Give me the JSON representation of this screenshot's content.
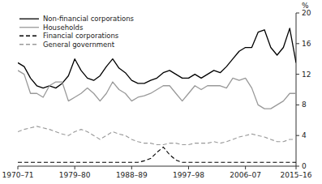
{
  "chart_data": {
    "type": "line",
    "y_label": "%",
    "categories": [
      "1970–71",
      null,
      null,
      null,
      null,
      null,
      null,
      null,
      null,
      "1979–80",
      null,
      null,
      null,
      null,
      null,
      null,
      null,
      null,
      "1988–89",
      null,
      null,
      null,
      null,
      null,
      null,
      null,
      null,
      "1997–98",
      null,
      null,
      null,
      null,
      null,
      null,
      null,
      null,
      "2006–07",
      null,
      null,
      null,
      null,
      null,
      null,
      null,
      "2015–16"
    ],
    "series": [
      {
        "name": "Non-financial corporations",
        "color": "#000000",
        "line_style": "solid",
        "values": [
          13.5,
          13.0,
          11.5,
          10.5,
          10.2,
          10.5,
          10.2,
          10.8,
          11.8,
          14.0,
          12.5,
          11.5,
          11.2,
          11.8,
          13.0,
          14.0,
          12.8,
          12.2,
          11.2,
          10.8,
          10.8,
          11.2,
          11.5,
          12.2,
          12.5,
          12.0,
          11.5,
          11.5,
          12.0,
          11.5,
          12.0,
          12.5,
          12.2,
          13.0,
          14.0,
          15.0,
          15.5,
          15.5,
          17.5,
          17.8,
          15.5,
          14.5,
          15.5,
          18.0,
          13.5
        ]
      },
      {
        "name": "Households",
        "color": "#999999",
        "line_style": "solid",
        "values": [
          12.5,
          12.0,
          9.5,
          9.5,
          9.0,
          10.5,
          11.0,
          11.0,
          8.5,
          9.0,
          9.5,
          10.2,
          9.5,
          8.5,
          9.5,
          11.0,
          10.0,
          9.5,
          8.5,
          9.0,
          9.2,
          9.5,
          10.0,
          10.5,
          10.5,
          9.5,
          8.5,
          9.5,
          10.5,
          10.0,
          10.5,
          10.5,
          10.5,
          10.2,
          11.5,
          11.2,
          11.5,
          10.2,
          8.0,
          7.5,
          7.5,
          8.0,
          8.5,
          9.5,
          9.5
        ]
      },
      {
        "name": "Financial corporations",
        "color": "#000000",
        "line_style": "dashed",
        "values": [
          0.5,
          0.5,
          0.5,
          0.5,
          0.5,
          0.5,
          0.5,
          0.5,
          0.5,
          0.5,
          0.5,
          0.5,
          0.5,
          0.5,
          0.5,
          0.5,
          0.5,
          0.5,
          0.5,
          0.5,
          0.7,
          1.0,
          1.8,
          2.5,
          1.5,
          0.8,
          0.5,
          0.5,
          0.5,
          0.5,
          0.5,
          0.5,
          0.5,
          0.5,
          0.5,
          0.5,
          0.5,
          0.5,
          0.5,
          0.5,
          0.5,
          0.5,
          0.5,
          0.5,
          0.5
        ]
      },
      {
        "name": "General government",
        "color": "#999999",
        "line_style": "dashed",
        "values": [
          4.5,
          4.8,
          5.0,
          5.2,
          5.0,
          4.8,
          4.5,
          4.2,
          4.0,
          4.5,
          4.8,
          4.5,
          4.0,
          3.5,
          4.0,
          4.5,
          4.2,
          4.0,
          3.5,
          3.2,
          3.0,
          3.0,
          2.8,
          2.8,
          3.0,
          3.0,
          2.8,
          2.8,
          3.0,
          3.0,
          3.0,
          3.2,
          3.0,
          3.2,
          3.5,
          3.8,
          4.0,
          4.2,
          4.0,
          3.8,
          3.5,
          3.2,
          3.2,
          3.5,
          3.5
        ]
      }
    ],
    "ylim": [
      0,
      20
    ],
    "yticks": [
      0,
      4,
      8,
      12,
      16,
      20
    ],
    "grid": false,
    "legend": "upper left"
  }
}
